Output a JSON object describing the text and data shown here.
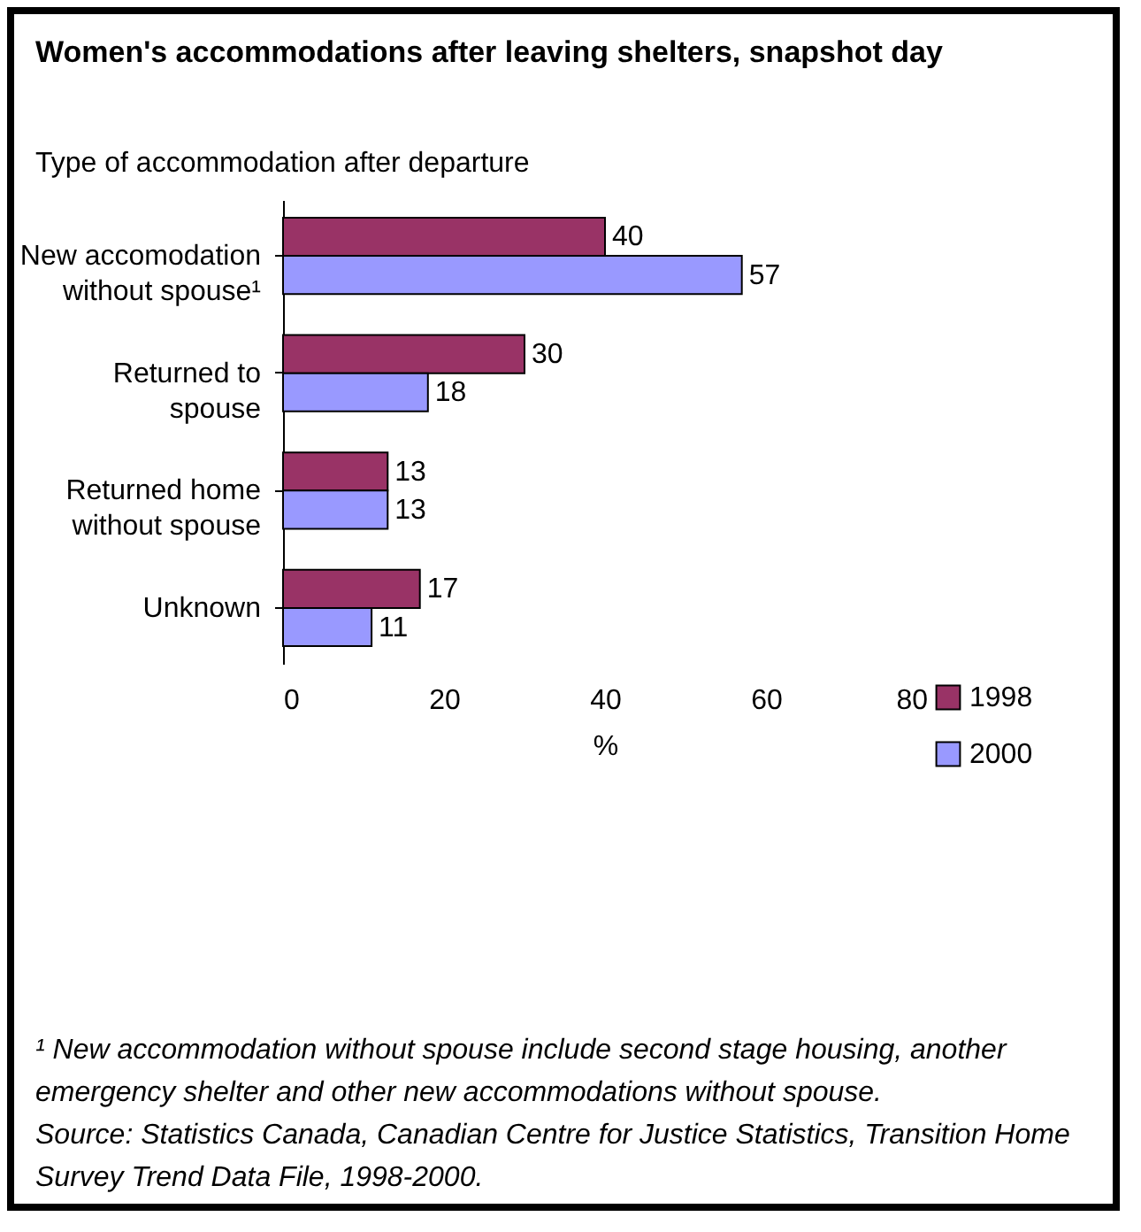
{
  "chart_data": {
    "type": "bar",
    "orientation": "horizontal",
    "title": "Women's accommodations after leaving shelters, snapshot day",
    "subtitle": "Type of accommodation after departure",
    "xlabel": "%",
    "categories": [
      "New accomodation without spouse¹",
      "Returned to spouse",
      "Returned home without spouse",
      "Unknown"
    ],
    "series": [
      {
        "name": "1998",
        "color": "#993366",
        "values": [
          40,
          30,
          13,
          17
        ]
      },
      {
        "name": "2000",
        "color": "#9999ff",
        "values": [
          57,
          18,
          13,
          11
        ]
      }
    ],
    "xlim": [
      0,
      80
    ],
    "xticks": [
      0,
      20,
      40,
      60,
      80
    ],
    "grid": false,
    "legend": "bottom right",
    "data_labels": true,
    "annotations": [
      "¹ New accommodation without spouse include second stage housing, another emergency shelter and other new accommodations without spouse.",
      "Source: Statistics Canada, Canadian Centre for Justice Statistics, Transition Home Survey Trend Data File, 1998-2000."
    ]
  }
}
